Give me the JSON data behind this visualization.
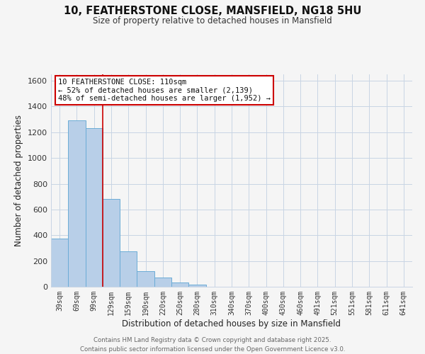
{
  "title1": "10, FEATHERSTONE CLOSE, MANSFIELD, NG18 5HU",
  "title2": "Size of property relative to detached houses in Mansfield",
  "xlabel": "Distribution of detached houses by size in Mansfield",
  "ylabel": "Number of detached properties",
  "bar_labels": [
    "39sqm",
    "69sqm",
    "99sqm",
    "129sqm",
    "159sqm",
    "190sqm",
    "220sqm",
    "250sqm",
    "280sqm",
    "310sqm",
    "340sqm",
    "370sqm",
    "400sqm",
    "430sqm",
    "460sqm",
    "491sqm",
    "521sqm",
    "551sqm",
    "581sqm",
    "611sqm",
    "641sqm"
  ],
  "bar_values": [
    375,
    1290,
    1230,
    680,
    275,
    120,
    70,
    35,
    15,
    0,
    0,
    0,
    0,
    0,
    0,
    0,
    0,
    0,
    0,
    0,
    0
  ],
  "bar_color": "#b8cfe8",
  "bar_edge_color": "#6bacd6",
  "vline_x": 2.5,
  "vline_color": "#cc0000",
  "ylim": [
    0,
    1650
  ],
  "yticks": [
    0,
    200,
    400,
    600,
    800,
    1000,
    1200,
    1400,
    1600
  ],
  "annotation_title": "10 FEATHERSTONE CLOSE: 110sqm",
  "annotation_line1": "← 52% of detached houses are smaller (2,139)",
  "annotation_line2": "48% of semi-detached houses are larger (1,952) →",
  "annotation_box_color": "#ffffff",
  "annotation_box_edge": "#cc0000",
  "footer1": "Contains HM Land Registry data © Crown copyright and database right 2025.",
  "footer2": "Contains public sector information licensed under the Open Government Licence v3.0.",
  "bg_color": "#f5f5f5",
  "grid_color": "#c8d4e4"
}
